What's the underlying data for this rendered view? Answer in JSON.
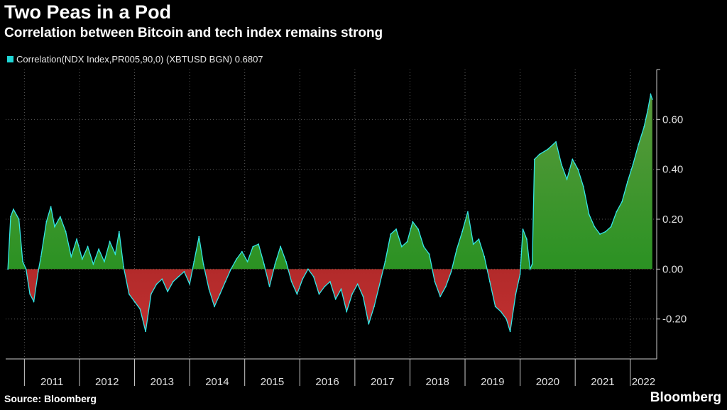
{
  "header": {
    "title": "Two Peas in a Pod",
    "subtitle": "Correlation between Bitcoin and tech index remains strong"
  },
  "legend": {
    "label": "Correlation(NDX Index,PR005,90,0) (XBTUSD BGN) 0.6807",
    "color": "#1fd6d6"
  },
  "footer": {
    "source": "Source: Bloomberg",
    "brand": "Bloomberg"
  },
  "colors": {
    "positive_fill": "#1a8f1a",
    "negative_fill": "#8c1a1a",
    "line": "#33e6e6",
    "grid": "#5a5a5a",
    "axis": "#cccccc"
  },
  "chart_data": {
    "type": "area",
    "title": "Two Peas in a Pod",
    "subtitle": "Correlation between Bitcoin and tech index remains strong",
    "xlabel": "",
    "ylabel": "",
    "series_name": "Correlation(NDX Index,PR005,90,0) (XBTUSD BGN)",
    "last_value": 0.6807,
    "ylim": [
      -0.36,
      0.8
    ],
    "yticks": [
      -0.2,
      0.0,
      0.2,
      0.4,
      0.6
    ],
    "ytick_labels": [
      "-0.20",
      "0.00",
      "0.20",
      "0.40",
      "0.60"
    ],
    "x_categories": [
      "2011",
      "2012",
      "2013",
      "2014",
      "2015",
      "2016",
      "2017",
      "2018",
      "2019",
      "2020",
      "2021",
      "2022"
    ],
    "grid": true,
    "legend_position": "top-left",
    "points": [
      [
        2010.7,
        0.0
      ],
      [
        2010.75,
        0.21
      ],
      [
        2010.8,
        0.24
      ],
      [
        2010.9,
        0.2
      ],
      [
        2010.97,
        0.03
      ],
      [
        2011.03,
        0.0
      ],
      [
        2011.1,
        -0.1
      ],
      [
        2011.17,
        -0.13
      ],
      [
        2011.25,
        -0.01
      ],
      [
        2011.3,
        0.05
      ],
      [
        2011.4,
        0.19
      ],
      [
        2011.48,
        0.25
      ],
      [
        2011.55,
        0.17
      ],
      [
        2011.65,
        0.21
      ],
      [
        2011.75,
        0.15
      ],
      [
        2011.85,
        0.05
      ],
      [
        2011.95,
        0.12
      ],
      [
        2012.05,
        0.04
      ],
      [
        2012.15,
        0.09
      ],
      [
        2012.25,
        0.02
      ],
      [
        2012.35,
        0.08
      ],
      [
        2012.45,
        0.03
      ],
      [
        2012.55,
        0.11
      ],
      [
        2012.65,
        0.06
      ],
      [
        2012.72,
        0.15
      ],
      [
        2012.8,
        0.01
      ],
      [
        2012.9,
        -0.1
      ],
      [
        2013.0,
        -0.13
      ],
      [
        2013.1,
        -0.16
      ],
      [
        2013.2,
        -0.25
      ],
      [
        2013.3,
        -0.1
      ],
      [
        2013.4,
        -0.06
      ],
      [
        2013.5,
        -0.04
      ],
      [
        2013.6,
        -0.09
      ],
      [
        2013.7,
        -0.05
      ],
      [
        2013.8,
        -0.03
      ],
      [
        2013.9,
        -0.01
      ],
      [
        2014.0,
        -0.06
      ],
      [
        2014.08,
        0.03
      ],
      [
        2014.17,
        0.13
      ],
      [
        2014.25,
        0.02
      ],
      [
        2014.35,
        -0.08
      ],
      [
        2014.45,
        -0.15
      ],
      [
        2014.55,
        -0.1
      ],
      [
        2014.65,
        -0.05
      ],
      [
        2014.75,
        0.0
      ],
      [
        2014.85,
        0.04
      ],
      [
        2014.95,
        0.07
      ],
      [
        2015.05,
        0.03
      ],
      [
        2015.15,
        0.09
      ],
      [
        2015.25,
        0.1
      ],
      [
        2015.35,
        0.02
      ],
      [
        2015.45,
        -0.07
      ],
      [
        2015.55,
        0.02
      ],
      [
        2015.65,
        0.09
      ],
      [
        2015.75,
        0.03
      ],
      [
        2015.85,
        -0.05
      ],
      [
        2015.95,
        -0.1
      ],
      [
        2016.05,
        -0.04
      ],
      [
        2016.15,
        0.0
      ],
      [
        2016.25,
        -0.03
      ],
      [
        2016.35,
        -0.1
      ],
      [
        2016.45,
        -0.07
      ],
      [
        2016.55,
        -0.05
      ],
      [
        2016.65,
        -0.12
      ],
      [
        2016.75,
        -0.08
      ],
      [
        2016.85,
        -0.17
      ],
      [
        2016.95,
        -0.1
      ],
      [
        2017.05,
        -0.06
      ],
      [
        2017.15,
        -0.11
      ],
      [
        2017.25,
        -0.22
      ],
      [
        2017.35,
        -0.15
      ],
      [
        2017.45,
        -0.06
      ],
      [
        2017.55,
        0.03
      ],
      [
        2017.65,
        0.14
      ],
      [
        2017.75,
        0.16
      ],
      [
        2017.85,
        0.09
      ],
      [
        2017.95,
        0.11
      ],
      [
        2018.05,
        0.19
      ],
      [
        2018.15,
        0.16
      ],
      [
        2018.25,
        0.09
      ],
      [
        2018.35,
        0.06
      ],
      [
        2018.45,
        -0.05
      ],
      [
        2018.55,
        -0.11
      ],
      [
        2018.65,
        -0.07
      ],
      [
        2018.75,
        -0.01
      ],
      [
        2018.85,
        0.08
      ],
      [
        2018.95,
        0.15
      ],
      [
        2019.05,
        0.23
      ],
      [
        2019.15,
        0.1
      ],
      [
        2019.25,
        0.12
      ],
      [
        2019.35,
        0.05
      ],
      [
        2019.45,
        -0.05
      ],
      [
        2019.55,
        -0.15
      ],
      [
        2019.65,
        -0.17
      ],
      [
        2019.75,
        -0.2
      ],
      [
        2019.82,
        -0.25
      ],
      [
        2019.92,
        -0.1
      ],
      [
        2020.0,
        -0.02
      ],
      [
        2020.05,
        0.16
      ],
      [
        2020.12,
        0.12
      ],
      [
        2020.18,
        0.0
      ],
      [
        2020.22,
        0.02
      ],
      [
        2020.26,
        0.44
      ],
      [
        2020.35,
        0.46
      ],
      [
        2020.5,
        0.48
      ],
      [
        2020.65,
        0.51
      ],
      [
        2020.75,
        0.42
      ],
      [
        2020.85,
        0.36
      ],
      [
        2020.95,
        0.44
      ],
      [
        2021.05,
        0.4
      ],
      [
        2021.15,
        0.33
      ],
      [
        2021.25,
        0.22
      ],
      [
        2021.35,
        0.17
      ],
      [
        2021.45,
        0.14
      ],
      [
        2021.55,
        0.15
      ],
      [
        2021.65,
        0.17
      ],
      [
        2021.75,
        0.23
      ],
      [
        2021.85,
        0.27
      ],
      [
        2021.95,
        0.35
      ],
      [
        2022.05,
        0.42
      ],
      [
        2022.15,
        0.5
      ],
      [
        2022.25,
        0.57
      ],
      [
        2022.32,
        0.64
      ],
      [
        2022.37,
        0.7
      ],
      [
        2022.4,
        0.6807
      ]
    ]
  }
}
